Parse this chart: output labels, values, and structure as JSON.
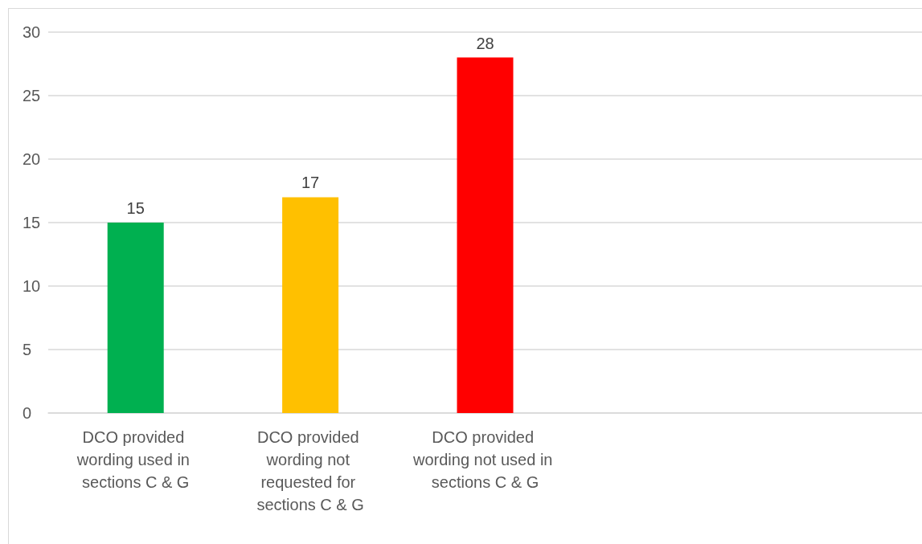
{
  "chart_data": {
    "type": "bar",
    "categories": [
      "DCO provided wording used in sections C & G",
      "DCO provided wording not requested for sections C & G",
      "DCO provided wording not used in sections C & G",
      null,
      null
    ],
    "values": [
      15,
      17,
      28,
      null,
      null
    ],
    "colors": [
      "#00b050",
      "#ffc000",
      "#ff0000",
      null,
      null
    ],
    "ylim": [
      0,
      30
    ],
    "yticks": [
      0,
      5,
      10,
      15,
      20,
      25,
      30
    ],
    "grid": "y",
    "data_labels": true
  }
}
